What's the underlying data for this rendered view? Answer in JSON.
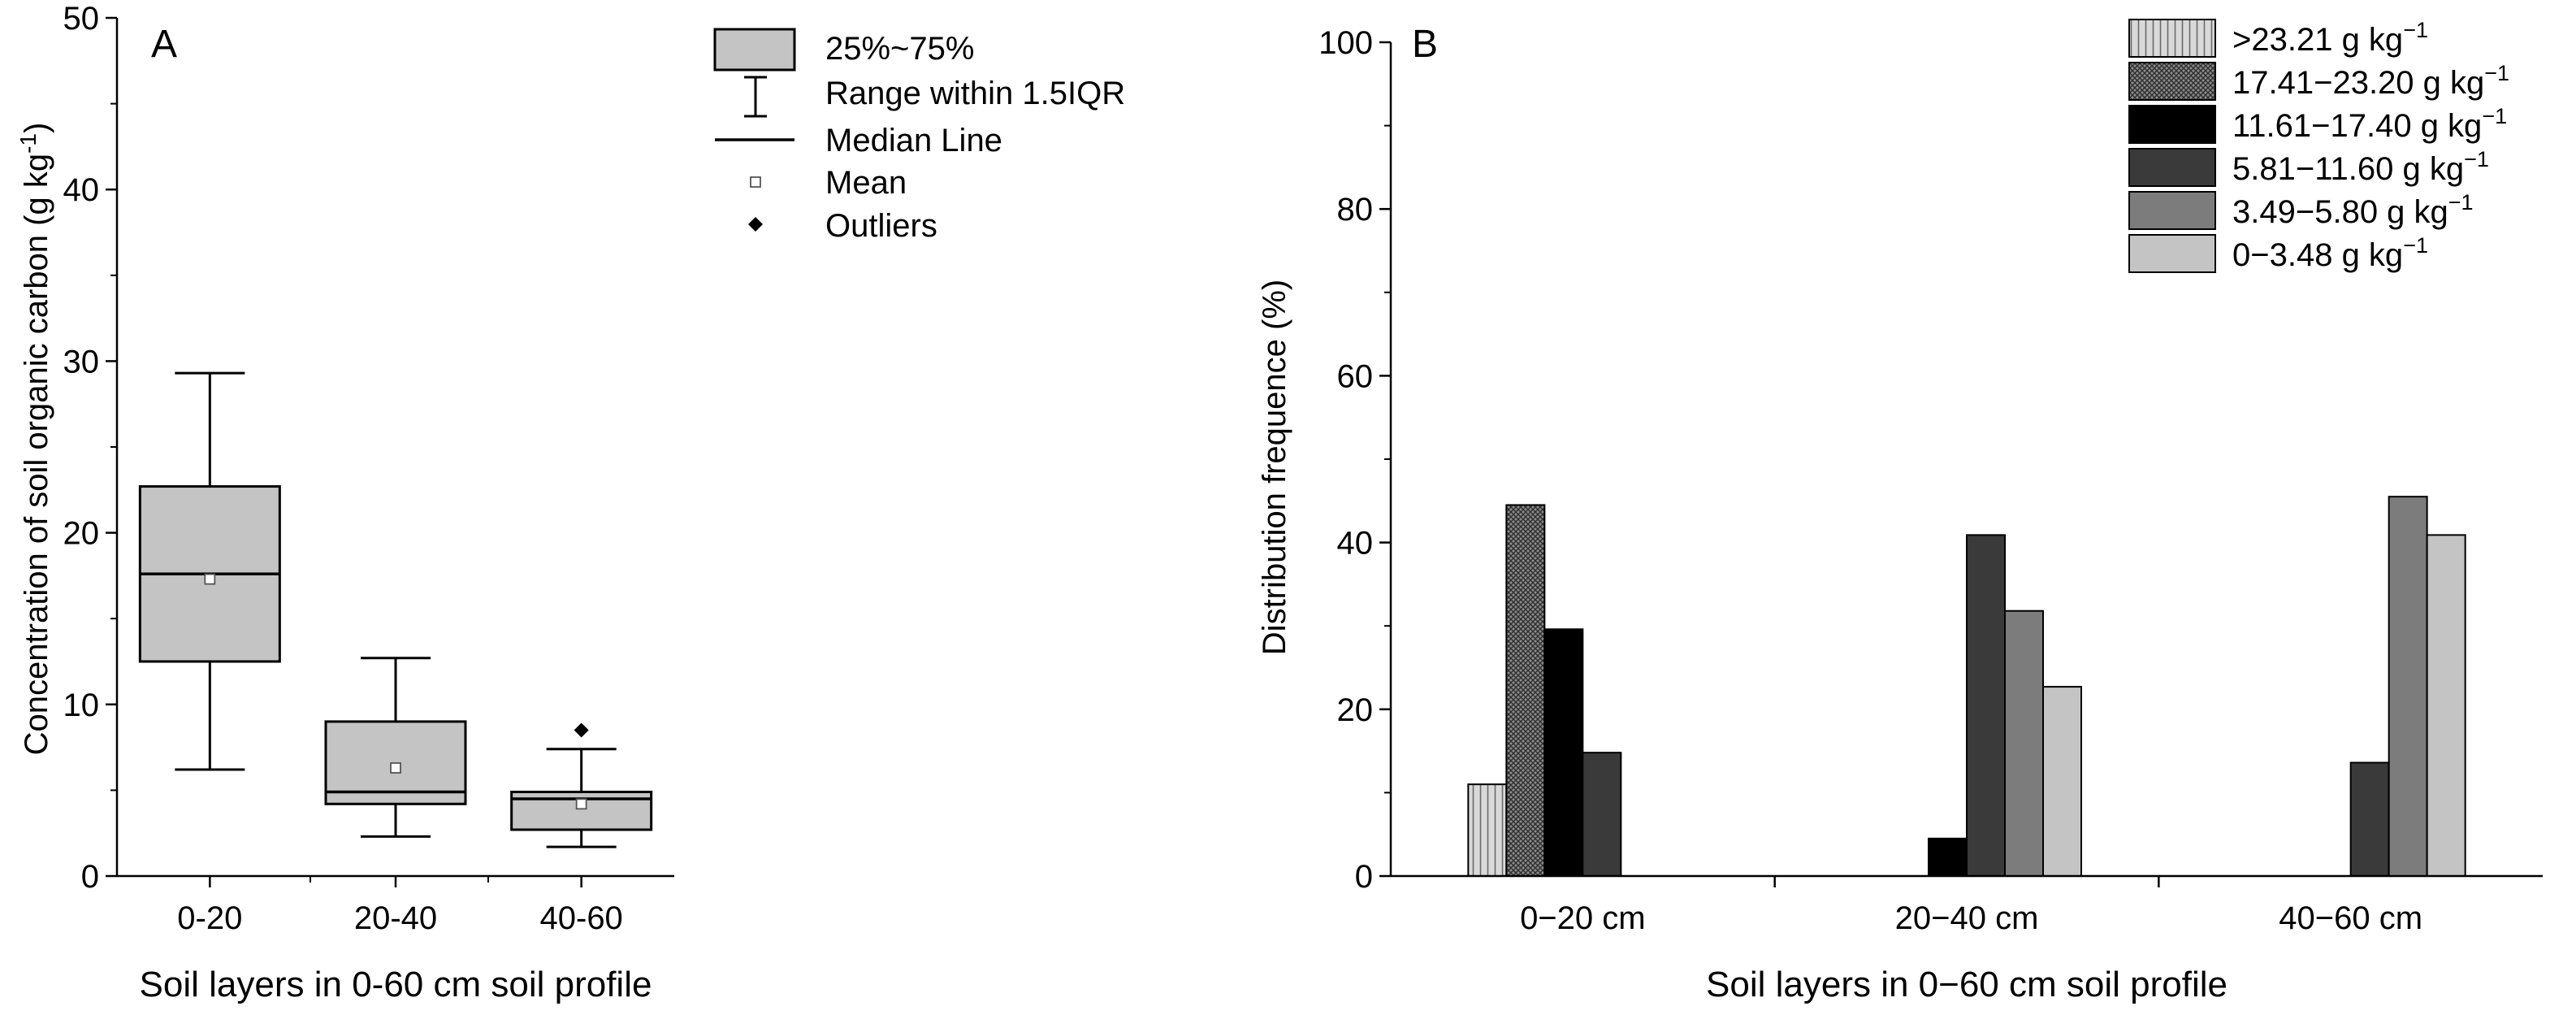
{
  "chart_data": [
    {
      "type": "box",
      "panel_label": "A",
      "ylabel_main": "Concentration of soil organic carbon (g kg",
      "ylabel_sup": "-1",
      "ylabel_end": ")",
      "xlabel": "Soil layers in 0-60 cm soil profile",
      "ylim": [
        0,
        50
      ],
      "yticks": [
        0,
        10,
        20,
        30,
        40,
        50
      ],
      "yticks_labels": [
        "0",
        "10",
        "20",
        "30",
        "40",
        "50"
      ],
      "categories": [
        "0-20",
        "20-40",
        "40-60"
      ],
      "boxes": [
        {
          "whisker_low": 6.2,
          "q1": 12.5,
          "median": 17.6,
          "mean": 17.3,
          "q3": 22.7,
          "whisker_high": 29.3,
          "outliers": []
        },
        {
          "whisker_low": 2.3,
          "q1": 4.2,
          "median": 4.9,
          "mean": 6.3,
          "q3": 9.0,
          "whisker_high": 12.7,
          "outliers": []
        },
        {
          "whisker_low": 1.7,
          "q1": 2.7,
          "median": 4.5,
          "mean": 4.2,
          "q3": 4.9,
          "whisker_high": 7.4,
          "outliers": [
            8.5
          ]
        }
      ],
      "legend": [
        "25%~75%",
        "Range within 1.5IQR",
        "Median Line",
        "Mean",
        "Outliers"
      ],
      "legend_position": "top-right"
    },
    {
      "type": "bar",
      "panel_label": "B",
      "ylabel": "Distribution frequence (%)",
      "xlabel": "Soil layers in 0−60 cm soil profile",
      "ylim": [
        0,
        100
      ],
      "yticks": [
        0,
        20,
        40,
        60,
        80,
        100
      ],
      "yticks_labels": [
        "0",
        "20",
        "40",
        "60",
        "80",
        "100"
      ],
      "categories": [
        "0−20 cm",
        "20−40 cm",
        "40−60 cm"
      ],
      "series": [
        {
          "name": ">23.21 g kg",
          "sup": "−1",
          "pattern": "vertical-lines",
          "color": "#c8c8c8",
          "values": [
            11,
            0,
            0
          ]
        },
        {
          "name": "17.41−23.20 g kg",
          "sup": "−1",
          "pattern": "crosshatch",
          "color": "#707070",
          "values": [
            44.5,
            0,
            0
          ]
        },
        {
          "name": "11.61−17.40 g kg",
          "sup": "−1",
          "pattern": "solid",
          "color": "#000000",
          "values": [
            29.6,
            4.5,
            0
          ]
        },
        {
          "name": "5.81−11.60 g kg",
          "sup": "−1",
          "pattern": "solid",
          "color": "#3a3a3a",
          "values": [
            14.8,
            40.9,
            13.6
          ]
        },
        {
          "name": "3.49−5.80 g kg",
          "sup": "−1",
          "pattern": "solid",
          "color": "#7c7c7c",
          "values": [
            0,
            31.8,
            45.5
          ]
        },
        {
          "name": "0−3.48 g kg",
          "sup": "−1",
          "pattern": "solid",
          "color": "#c4c4c4",
          "values": [
            0,
            22.7,
            40.9
          ]
        }
      ],
      "legend_position": "top-right"
    }
  ]
}
